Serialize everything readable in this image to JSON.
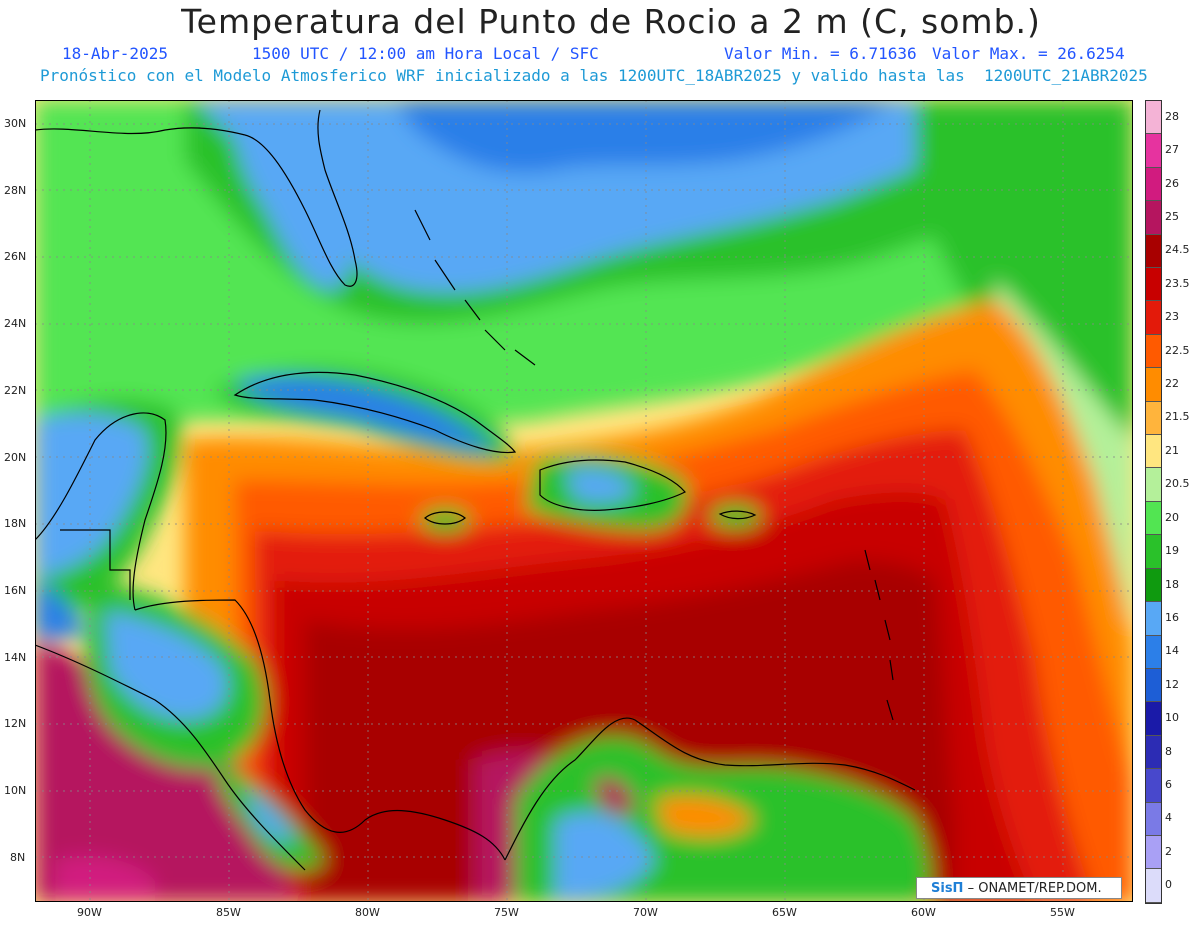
{
  "header": {
    "title": "Temperatura del Punto de Rocio a 2 m (C, somb.)",
    "date": "18-Abr-2025",
    "time": "1500 UTC / 12:00 am Hora Local / SFC",
    "min": "Valor Min. = 6.71636",
    "max": "Valor Max. = 26.6254",
    "subtitle": "Pronóstico con el Modelo Atmosferico WRF inicializado a las 1200UTC_18ABR2025 y valido hasta las  1200UTC_21ABR2025"
  },
  "axes": {
    "lat_labels": [
      "30N",
      "28N",
      "26N",
      "24N",
      "22N",
      "20N",
      "18N",
      "16N",
      "14N",
      "12N",
      "10N",
      "8N"
    ],
    "lon_labels": [
      "90W",
      "85W",
      "80W",
      "75W",
      "70W",
      "65W",
      "60W",
      "55W"
    ]
  },
  "colorbar": {
    "labels": [
      "28",
      "27",
      "26",
      "25",
      "24.5",
      "23.5",
      "23",
      "22.5",
      "22",
      "21.5",
      "21",
      "20.5",
      "20",
      "19",
      "18",
      "16",
      "14",
      "12",
      "10",
      "8",
      "6",
      "4",
      "2",
      "0"
    ],
    "colors": [
      "#f4b3d6",
      "#e6339f",
      "#d11b7f",
      "#b5155f",
      "#a80000",
      "#c80000",
      "#e31a0a",
      "#ff5a00",
      "#ff8c00",
      "#ffb43c",
      "#ffe680",
      "#b4f09a",
      "#52e552",
      "#2ac12a",
      "#0f9a0f",
      "#58a8f5",
      "#2c7fe8",
      "#1d5ed6",
      "#1a1aa8",
      "#2c2cb4",
      "#4848cc",
      "#7a7ae6",
      "#a9a0f5",
      "#dcdcfa"
    ]
  },
  "credit": {
    "logo": "SisΠ",
    "text": "– ONAMET/REP.DOM."
  }
}
